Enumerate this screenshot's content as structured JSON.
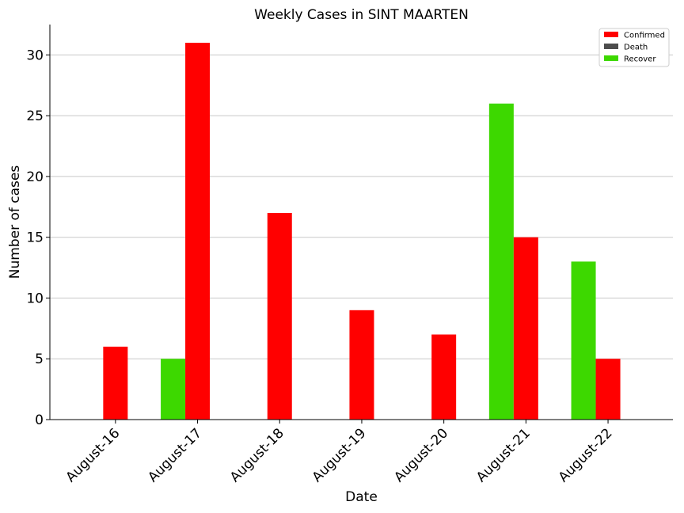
{
  "chart_data": {
    "type": "bar",
    "title": "Weekly Cases in SINT MAARTEN",
    "xlabel": "Date",
    "ylabel": "Number of cases",
    "categories": [
      "August-16",
      "August-17",
      "August-18",
      "August-19",
      "August-20",
      "August-21",
      "August-22"
    ],
    "series": [
      {
        "name": "Confirmed",
        "color": "#ff0000",
        "values": [
          6,
          31,
          17,
          9,
          7,
          15,
          5
        ]
      },
      {
        "name": "Death",
        "color": "#4d4d4d",
        "values": [
          0,
          0,
          0,
          0,
          0,
          0,
          0
        ]
      },
      {
        "name": "Recover",
        "color": "#3dd800",
        "values": [
          0,
          5,
          0,
          0,
          0,
          26,
          13
        ]
      }
    ],
    "yticks": [
      0,
      5,
      10,
      15,
      20,
      25,
      30
    ],
    "ylim": [
      0,
      32.5
    ],
    "grid": "horizontal",
    "legend_position": "top-right",
    "xtick_rotation": "45deg"
  }
}
